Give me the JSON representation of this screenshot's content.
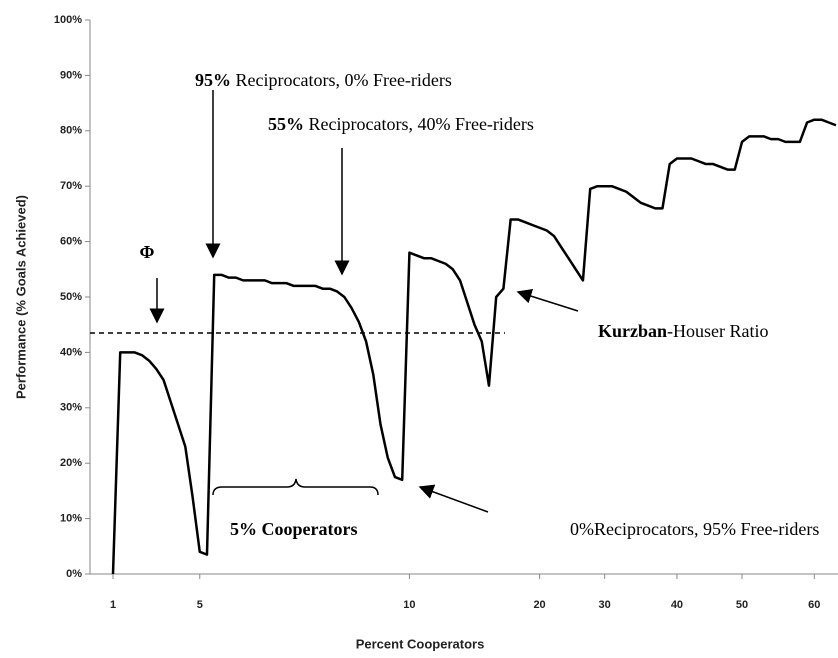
{
  "chart_data": {
    "type": "line",
    "xlabel": "Percent Cooperators",
    "ylabel": "Performance (% Goals Achieved)",
    "categories": [
      "1",
      null,
      null,
      null,
      null,
      null,
      null,
      null,
      null,
      null,
      null,
      null,
      "5",
      null,
      null,
      null,
      null,
      null,
      null,
      null,
      null,
      null,
      null,
      null,
      null,
      null,
      null,
      null,
      null,
      null,
      null,
      null,
      null,
      null,
      null,
      null,
      null,
      null,
      null,
      null,
      null,
      "10",
      null,
      null,
      null,
      null,
      null,
      null,
      null,
      null,
      null,
      null,
      null,
      null,
      null,
      null,
      null,
      null,
      null,
      "20",
      null,
      null,
      null,
      null,
      null,
      null,
      null,
      null,
      "30",
      null,
      null,
      null,
      null,
      null,
      null,
      null,
      null,
      null,
      "40",
      null,
      null,
      null,
      null,
      null,
      null,
      null,
      null,
      "50",
      null,
      null,
      null,
      null,
      null,
      null,
      null,
      null,
      null,
      "60",
      null,
      null,
      null
    ],
    "series": [
      {
        "color": "#000000",
        "values": [
          0,
          40,
          40,
          40,
          39.5,
          38.5,
          37,
          35,
          31,
          27,
          23,
          14,
          4,
          3.5,
          54,
          54,
          53.5,
          53.5,
          53,
          53,
          53,
          53,
          52.5,
          52.5,
          52.5,
          52,
          52,
          52,
          52,
          51.5,
          51.5,
          51,
          50,
          48,
          45.5,
          42,
          36,
          27,
          21,
          17.5,
          17,
          58,
          57.5,
          57,
          57,
          56.5,
          56,
          55,
          53,
          49,
          45,
          42,
          34,
          50,
          51.5,
          64,
          64,
          63.5,
          63,
          62.5,
          62,
          61,
          59,
          57,
          55,
          53,
          69.5,
          70,
          70,
          70,
          69.5,
          69,
          68,
          67,
          66.5,
          66,
          66,
          74,
          75,
          75,
          75,
          74.5,
          74,
          74,
          73.5,
          73,
          73,
          78,
          79,
          79,
          79,
          78.5,
          78.5,
          78,
          78,
          78,
          81.5,
          82,
          82,
          81.5,
          81
        ]
      }
    ],
    "ylim": [
      0,
      100
    ],
    "yticks": [
      {
        "value": 0,
        "label": "0%"
      },
      {
        "value": 10,
        "label": "10%"
      },
      {
        "value": 20,
        "label": "20%"
      },
      {
        "value": 30,
        "label": "30%"
      },
      {
        "value": 40,
        "label": "40%"
      },
      {
        "value": 50,
        "label": "50%"
      },
      {
        "value": 60,
        "label": "60%"
      },
      {
        "value": 70,
        "label": "70%"
      },
      {
        "value": 80,
        "label": "80%"
      },
      {
        "value": 90,
        "label": "90%"
      },
      {
        "value": 100,
        "label": "100%"
      }
    ],
    "reference_line": 43.5,
    "annotations": [
      {
        "text": "Φ"
      },
      {
        "bold": "95%",
        "text": " Reciprocators, 0% Free-riders"
      },
      {
        "bold": "55%",
        "text": " Reciprocators, 40% Free-riders"
      },
      {
        "bold": "Kurzban",
        "text": "-Houser Ratio"
      },
      {
        "bold": "5% Cooperators"
      },
      {
        "text": "0%Reciprocators, 95% Free-riders"
      }
    ]
  }
}
